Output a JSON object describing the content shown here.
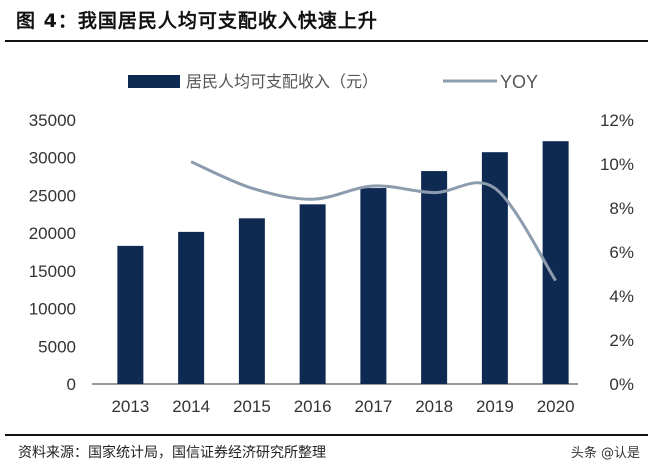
{
  "title": "图 4：我国居民人均可支配收入快速上升",
  "source": "资料来源：国家统计局，国信证券经济研究所整理",
  "watermark": "头条 @认是",
  "chart_data": {
    "type": "bar+line",
    "categories": [
      "2013",
      "2014",
      "2015",
      "2016",
      "2017",
      "2018",
      "2019",
      "2020"
    ],
    "series": [
      {
        "name": "居民人均可支配收入（元）",
        "type": "bar",
        "axis": "left",
        "color": "#0e2a52",
        "values": [
          18311,
          20167,
          21966,
          23821,
          25974,
          28228,
          30733,
          32189
        ]
      },
      {
        "name": "YOY",
        "type": "line",
        "axis": "right",
        "color": "#8c9cae",
        "values": [
          null,
          10.1,
          8.9,
          8.4,
          9.0,
          8.7,
          8.9,
          4.7
        ]
      }
    ],
    "y_left": {
      "lim": [
        0,
        35000
      ],
      "ticks": [
        "0",
        "5000",
        "10000",
        "15000",
        "20000",
        "25000",
        "30000",
        "35000"
      ]
    },
    "y_right": {
      "lim": [
        0,
        12
      ],
      "ticks": [
        "0%",
        "2%",
        "4%",
        "6%",
        "8%",
        "10%",
        "12%"
      ]
    },
    "legend": "top",
    "grid": false
  }
}
